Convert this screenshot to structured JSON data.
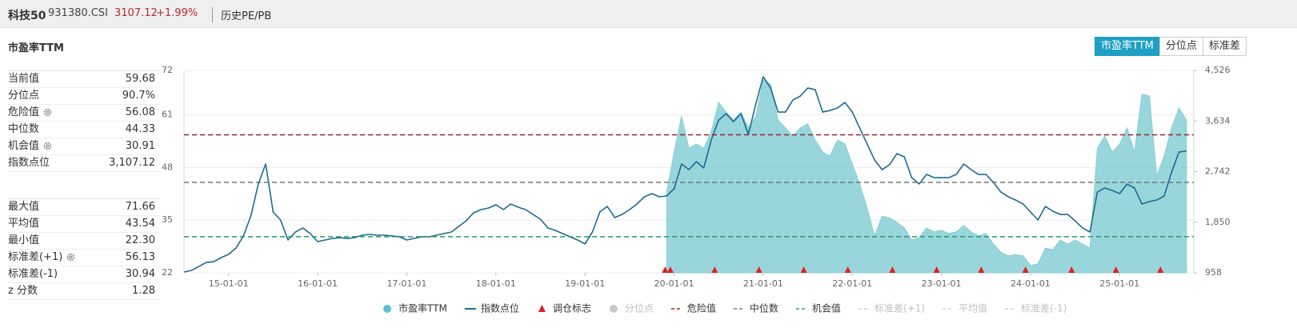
{
  "header": {
    "name": "科技50",
    "code": "931380.CSI",
    "price": "3107.12",
    "change": "+1.99%",
    "link": "历史PE/PB"
  },
  "panel": {
    "title": "市盈率TTM",
    "stats": [
      [
        {
          "label": "当前值",
          "value": "59.68"
        },
        {
          "label": "分位点",
          "value": "90.7%"
        },
        {
          "label": "危险值",
          "value": "56.08",
          "gear": true
        },
        {
          "label": "中位数",
          "value": "44.33"
        },
        {
          "label": "机会值",
          "value": "30.91",
          "gear": true
        },
        {
          "label": "指数点位",
          "value": "3,107.12"
        }
      ],
      [
        {
          "label": "最大值",
          "value": "71.66"
        },
        {
          "label": "平均值",
          "value": "43.54"
        },
        {
          "label": "最小值",
          "value": "22.30"
        },
        {
          "label": "标准差(+1)",
          "value": "56.13",
          "gear": true
        },
        {
          "label": "标准差(-1)",
          "value": "30.94"
        },
        {
          "label": "z 分数",
          "value": "1.28"
        }
      ]
    ]
  },
  "tabs": [
    "市盈率TTM",
    "分位点",
    "标准差"
  ],
  "active_tab": 0,
  "chart_data": {
    "type": "line",
    "x": [
      "14-07-01",
      "14-08-01",
      "14-09-01",
      "14-10-01",
      "14-11-01",
      "14-12-01",
      "15-01-01",
      "15-02-01",
      "15-03-01",
      "15-04-01",
      "15-05-01",
      "15-06-01",
      "15-07-01",
      "15-08-01",
      "15-09-01",
      "15-10-01",
      "15-11-01",
      "15-12-01",
      "16-01-01",
      "16-02-01",
      "16-03-01",
      "16-04-01",
      "16-05-01",
      "16-06-01",
      "16-07-01",
      "16-08-01",
      "16-09-01",
      "16-10-01",
      "16-11-01",
      "16-12-01",
      "17-01-01",
      "17-02-01",
      "17-03-01",
      "17-04-01",
      "17-05-01",
      "17-06-01",
      "17-07-01",
      "17-08-01",
      "17-09-01",
      "17-10-01",
      "17-11-01",
      "17-12-01",
      "18-01-01",
      "18-02-01",
      "18-03-01",
      "18-04-01",
      "18-05-01",
      "18-06-01",
      "18-07-01",
      "18-08-01",
      "18-09-01",
      "18-10-01",
      "18-11-01",
      "18-12-01",
      "19-01-01",
      "19-02-01",
      "19-03-01",
      "19-04-01",
      "19-05-01",
      "19-06-01",
      "19-07-01",
      "19-08-01",
      "19-09-01",
      "19-10-01",
      "19-11-01",
      "19-12-01",
      "20-01-01",
      "20-02-01",
      "20-03-01",
      "20-04-01",
      "20-05-01",
      "20-06-01",
      "20-07-01",
      "20-08-01",
      "20-09-01",
      "20-10-01",
      "20-11-01",
      "20-12-01",
      "21-01-01",
      "21-02-01",
      "21-03-01",
      "21-04-01",
      "21-05-01",
      "21-06-01",
      "21-07-01",
      "21-08-01",
      "21-09-01",
      "21-10-01",
      "21-11-01",
      "21-12-01",
      "22-01-01",
      "22-02-01",
      "22-03-01",
      "22-04-01",
      "22-05-01",
      "22-06-01",
      "22-07-01",
      "22-08-01",
      "22-09-01",
      "22-10-01",
      "22-11-01",
      "22-12-01",
      "23-01-01",
      "23-02-01",
      "23-03-01",
      "23-04-01",
      "23-05-01",
      "23-06-01",
      "23-07-01",
      "23-08-01",
      "23-09-01",
      "23-10-01",
      "23-11-01",
      "23-12-01",
      "24-01-01",
      "24-02-01",
      "24-03-01",
      "24-04-01",
      "24-05-01",
      "24-06-01",
      "24-07-01",
      "24-08-01",
      "24-09-01",
      "24-10-01",
      "24-11-01",
      "24-12-01",
      "25-01-01",
      "25-02-01",
      "25-03-01",
      "25-04-01",
      "25-05-01",
      "25-06-01",
      "25-07-01",
      "25-08-01",
      "25-09-01",
      "25-10-01"
    ],
    "xlim": [
      "14-07-01",
      "25-10-31"
    ],
    "xticks": [
      "15-01-01",
      "16-01-01",
      "17-01-01",
      "18-01-01",
      "19-01-01",
      "20-01-01",
      "21-01-01",
      "22-01-01",
      "23-01-01",
      "24-01-01",
      "25-01-01"
    ],
    "ylim": [
      22,
      72
    ],
    "yticks": [
      22,
      35,
      48,
      61,
      72
    ],
    "y2lim": [
      958,
      4526
    ],
    "y2ticks": [
      958,
      {
        "value": 1850,
        "label": "1,850"
      },
      {
        "value": 2742,
        "label": "2,742"
      },
      {
        "value": 3634,
        "label": "3,634"
      },
      {
        "value": 4526,
        "label": "4,526"
      }
    ],
    "grid": true,
    "series": [
      {
        "name": "市盈率TTM",
        "type": "area",
        "color": "#86cfd6",
        "values": [
          null,
          null,
          null,
          null,
          null,
          null,
          null,
          null,
          null,
          null,
          null,
          null,
          null,
          null,
          null,
          null,
          null,
          null,
          null,
          null,
          null,
          null,
          null,
          null,
          null,
          null,
          null,
          null,
          null,
          null,
          null,
          null,
          null,
          null,
          null,
          null,
          null,
          null,
          null,
          null,
          null,
          null,
          null,
          null,
          null,
          null,
          null,
          null,
          null,
          null,
          null,
          null,
          null,
          null,
          null,
          null,
          null,
          null,
          null,
          null,
          null,
          null,
          null,
          null,
          null,
          42.0,
          51.8,
          60.7,
          52.8,
          53.8,
          52.8,
          56.8,
          64.1,
          61.7,
          59.7,
          61.7,
          57.8,
          60.7,
          69.6,
          68.6,
          59.7,
          57.8,
          55.8,
          57.8,
          58.8,
          54.8,
          51.8,
          50.9,
          54.8,
          53.8,
          48.9,
          43.9,
          38.0,
          31.1,
          36.0,
          35.6,
          34.5,
          33.1,
          30.1,
          30.7,
          33.1,
          32.1,
          32.5,
          31.7,
          32.1,
          33.7,
          32.1,
          31.1,
          31.7,
          29.1,
          27.1,
          26.2,
          26.5,
          26.2,
          23.8,
          24.2,
          28.1,
          27.7,
          30.1,
          29.1,
          30.1,
          29.1,
          28.1,
          52.8,
          55.8,
          51.8,
          53.8,
          57.8,
          51.8,
          66.1,
          65.7,
          45.9,
          50.9,
          57.8,
          62.7,
          59.68
        ]
      },
      {
        "name": "指数点位",
        "type": "line",
        "axis": "y2",
        "color": "#1d6a8f",
        "values": [
          972,
          1000,
          1070,
          1141,
          1155,
          1226,
          1282,
          1395,
          1607,
          1959,
          2523,
          2876,
          2030,
          1889,
          1536,
          1677,
          1748,
          1649,
          1508,
          1536,
          1564,
          1578,
          1564,
          1578,
          1621,
          1635,
          1621,
          1621,
          1607,
          1593,
          1536,
          1564,
          1593,
          1593,
          1621,
          1649,
          1677,
          1776,
          1875,
          2016,
          2072,
          2100,
          2157,
          2072,
          2171,
          2114,
          2072,
          1987,
          1903,
          1748,
          1705,
          1649,
          1593,
          1536,
          1466,
          1677,
          2030,
          2128,
          1931,
          1987,
          2072,
          2171,
          2298,
          2354,
          2298,
          2312,
          2439,
          2876,
          2777,
          2918,
          2805,
          3299,
          3651,
          3764,
          3623,
          3764,
          3397,
          3933,
          4413,
          4215,
          3792,
          3792,
          4004,
          4074,
          4215,
          4187,
          3792,
          3820,
          3863,
          3961,
          3792,
          3510,
          3228,
          2946,
          2777,
          2862,
          3059,
          3003,
          2636,
          2523,
          2692,
          2636,
          2636,
          2636,
          2692,
          2876,
          2777,
          2692,
          2692,
          2551,
          2382,
          2298,
          2241,
          2171,
          2030,
          1889,
          2128,
          2044,
          1987,
          1987,
          1875,
          1748,
          1677,
          2382,
          2453,
          2410,
          2354,
          2523,
          2453,
          2171,
          2213,
          2241,
          2312,
          2735,
          3087,
          3107.12
        ]
      }
    ],
    "markers": {
      "name": "调仓标志",
      "color": "#e02020",
      "x": [
        "19-11-25",
        "19-12-16",
        "20-06-15",
        "20-12-14",
        "21-06-15",
        "21-12-13",
        "22-06-13",
        "22-12-12",
        "23-06-12",
        "23-12-11",
        "24-06-17",
        "24-12-16",
        "25-06-16"
      ]
    },
    "hidden_series": [
      {
        "name": "分位点",
        "color": "#c8c8c8"
      }
    ],
    "reference_lines": [
      {
        "name": "危险值",
        "value": 56.08,
        "color": "#9b2222",
        "visible": true
      },
      {
        "name": "中位数",
        "value": 44.33,
        "color": "#777777",
        "visible": true
      },
      {
        "name": "机会值",
        "value": 30.91,
        "color": "#2a9a6a",
        "visible": true
      },
      {
        "name": "标准差(+1)",
        "value": 56.13,
        "color": "#d0d0d0",
        "visible": false
      },
      {
        "name": "平均值",
        "value": 43.54,
        "color": "#d0d0d0",
        "visible": false
      },
      {
        "name": "标准差(-1)",
        "value": 30.94,
        "color": "#d0d0d0",
        "visible": false
      }
    ]
  }
}
